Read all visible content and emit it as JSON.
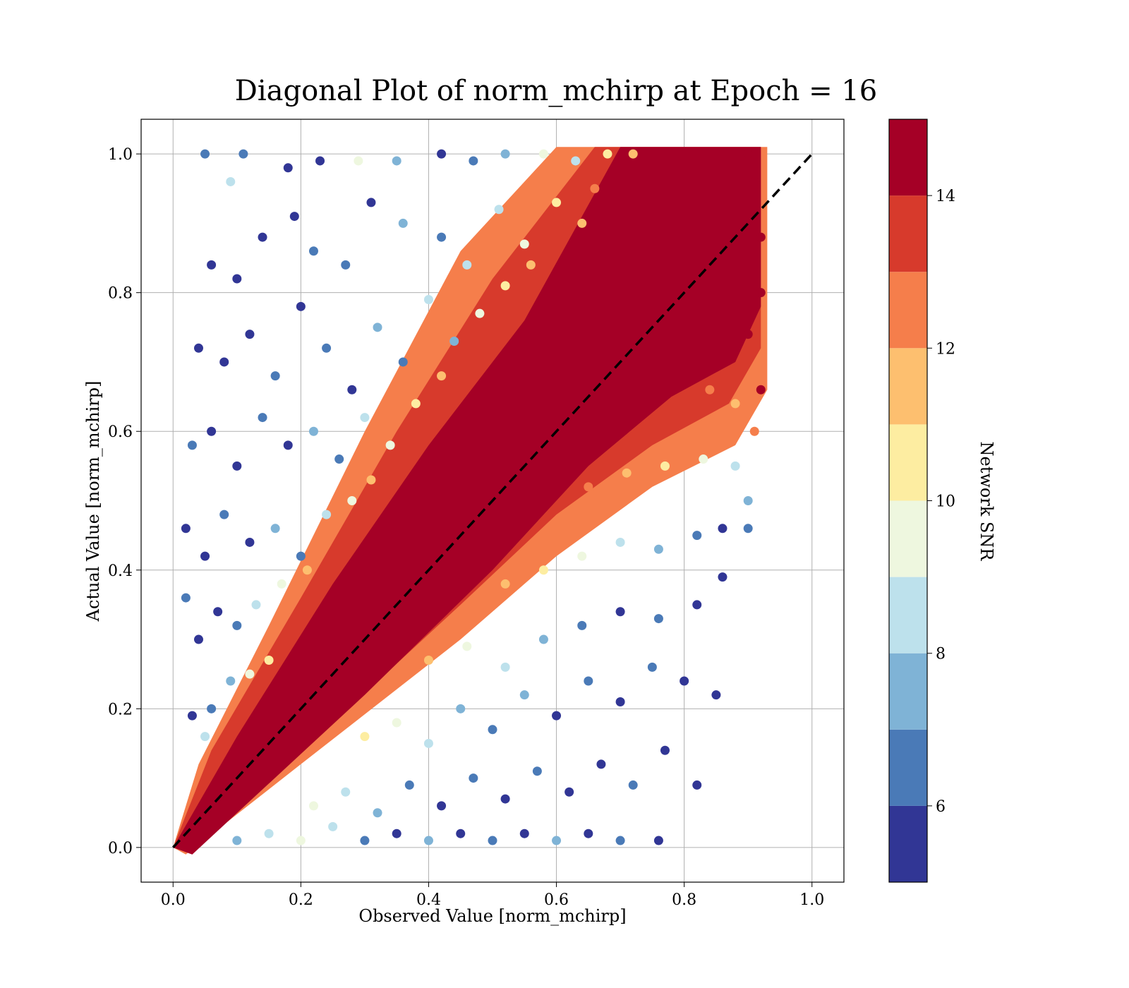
{
  "chart_data": {
    "type": "scatter",
    "title": "Diagonal Plot of norm_mchirp at Epoch = 16",
    "xlabel": "Observed Value [norm_mchirp]",
    "ylabel": "Actual Value [norm_mchirp]",
    "xlim": [
      -0.05,
      1.05
    ],
    "ylim": [
      -0.05,
      1.05
    ],
    "xticks": [
      "0.0",
      "0.2",
      "0.4",
      "0.6",
      "0.8",
      "1.0"
    ],
    "yticks": [
      "0.0",
      "0.2",
      "0.4",
      "0.6",
      "0.8",
      "1.0"
    ],
    "grid": true,
    "reference_line": {
      "from": [
        0,
        0
      ],
      "to": [
        1,
        1
      ],
      "style": "dashed",
      "color": "#000000"
    },
    "colorbar": {
      "label": "Network SNR",
      "range": [
        5,
        15
      ],
      "ticks": [
        "6",
        "8",
        "10",
        "12",
        "14"
      ],
      "bins": [
        {
          "from": 5,
          "to": 6,
          "color": "#313695"
        },
        {
          "from": 6,
          "to": 7,
          "color": "#4a7ab7"
        },
        {
          "from": 7,
          "to": 8,
          "color": "#7fb3d6"
        },
        {
          "from": 8,
          "to": 9,
          "color": "#bde1ec"
        },
        {
          "from": 9,
          "to": 10,
          "color": "#eef7df"
        },
        {
          "from": 10,
          "to": 11,
          "color": "#fdeda1"
        },
        {
          "from": 11,
          "to": 12,
          "color": "#fdbf6f"
        },
        {
          "from": 12,
          "to": 13,
          "color": "#f57e4b"
        },
        {
          "from": 13,
          "to": 14,
          "color": "#d73a2c"
        },
        {
          "from": 14,
          "to": 15,
          "color": "#a50026"
        }
      ]
    },
    "series": [
      {
        "color_by": "Network SNR",
        "points": [
          [
            0.05,
            1.0,
            6
          ],
          [
            0.09,
            0.96,
            8
          ],
          [
            0.11,
            1.0,
            6
          ],
          [
            0.18,
            0.98,
            5
          ],
          [
            0.23,
            0.99,
            5
          ],
          [
            0.29,
            0.99,
            9
          ],
          [
            0.35,
            0.99,
            7
          ],
          [
            0.42,
            1.0,
            5
          ],
          [
            0.47,
            0.99,
            6
          ],
          [
            0.52,
            1.0,
            7
          ],
          [
            0.58,
            1.0,
            9
          ],
          [
            0.63,
            0.99,
            8
          ],
          [
            0.68,
            1.0,
            10
          ],
          [
            0.72,
            1.0,
            11
          ],
          [
            0.06,
            0.84,
            5
          ],
          [
            0.1,
            0.82,
            5
          ],
          [
            0.14,
            0.88,
            5
          ],
          [
            0.19,
            0.91,
            5
          ],
          [
            0.22,
            0.86,
            6
          ],
          [
            0.27,
            0.84,
            6
          ],
          [
            0.31,
            0.93,
            5
          ],
          [
            0.36,
            0.9,
            7
          ],
          [
            0.42,
            0.88,
            6
          ],
          [
            0.46,
            0.84,
            8
          ],
          [
            0.51,
            0.92,
            8
          ],
          [
            0.55,
            0.87,
            9
          ],
          [
            0.6,
            0.93,
            10
          ],
          [
            0.64,
            0.9,
            11
          ],
          [
            0.66,
            0.95,
            12
          ],
          [
            0.04,
            0.72,
            5
          ],
          [
            0.08,
            0.7,
            5
          ],
          [
            0.12,
            0.74,
            5
          ],
          [
            0.16,
            0.68,
            6
          ],
          [
            0.2,
            0.78,
            5
          ],
          [
            0.24,
            0.72,
            6
          ],
          [
            0.28,
            0.66,
            5
          ],
          [
            0.32,
            0.75,
            7
          ],
          [
            0.36,
            0.7,
            6
          ],
          [
            0.4,
            0.79,
            8
          ],
          [
            0.44,
            0.73,
            7
          ],
          [
            0.48,
            0.77,
            9
          ],
          [
            0.52,
            0.81,
            10
          ],
          [
            0.56,
            0.84,
            11
          ],
          [
            0.03,
            0.58,
            6
          ],
          [
            0.06,
            0.6,
            5
          ],
          [
            0.1,
            0.55,
            5
          ],
          [
            0.14,
            0.62,
            6
          ],
          [
            0.18,
            0.58,
            5
          ],
          [
            0.22,
            0.6,
            7
          ],
          [
            0.26,
            0.56,
            6
          ],
          [
            0.3,
            0.62,
            8
          ],
          [
            0.34,
            0.58,
            9
          ],
          [
            0.38,
            0.64,
            10
          ],
          [
            0.42,
            0.68,
            11
          ],
          [
            0.02,
            0.46,
            5
          ],
          [
            0.05,
            0.42,
            5
          ],
          [
            0.08,
            0.48,
            6
          ],
          [
            0.12,
            0.44,
            5
          ],
          [
            0.16,
            0.46,
            7
          ],
          [
            0.2,
            0.42,
            6
          ],
          [
            0.24,
            0.48,
            8
          ],
          [
            0.28,
            0.5,
            9
          ],
          [
            0.31,
            0.53,
            11
          ],
          [
            0.02,
            0.36,
            6
          ],
          [
            0.04,
            0.3,
            5
          ],
          [
            0.07,
            0.34,
            5
          ],
          [
            0.1,
            0.32,
            6
          ],
          [
            0.13,
            0.35,
            8
          ],
          [
            0.17,
            0.38,
            9
          ],
          [
            0.21,
            0.4,
            11
          ],
          [
            0.03,
            0.19,
            5
          ],
          [
            0.06,
            0.2,
            6
          ],
          [
            0.09,
            0.24,
            7
          ],
          [
            0.12,
            0.25,
            9
          ],
          [
            0.15,
            0.27,
            10
          ],
          [
            0.05,
            0.16,
            8
          ],
          [
            0.1,
            0.01,
            7
          ],
          [
            0.15,
            0.02,
            8
          ],
          [
            0.2,
            0.01,
            9
          ],
          [
            0.25,
            0.03,
            8
          ],
          [
            0.3,
            0.01,
            6
          ],
          [
            0.35,
            0.02,
            5
          ],
          [
            0.4,
            0.01,
            7
          ],
          [
            0.45,
            0.02,
            5
          ],
          [
            0.5,
            0.01,
            6
          ],
          [
            0.55,
            0.02,
            5
          ],
          [
            0.6,
            0.01,
            7
          ],
          [
            0.65,
            0.02,
            5
          ],
          [
            0.7,
            0.01,
            6
          ],
          [
            0.76,
            0.01,
            5
          ],
          [
            0.22,
            0.06,
            9
          ],
          [
            0.27,
            0.08,
            8
          ],
          [
            0.32,
            0.05,
            7
          ],
          [
            0.37,
            0.09,
            6
          ],
          [
            0.42,
            0.06,
            5
          ],
          [
            0.47,
            0.1,
            6
          ],
          [
            0.52,
            0.07,
            5
          ],
          [
            0.57,
            0.11,
            6
          ],
          [
            0.62,
            0.08,
            5
          ],
          [
            0.67,
            0.12,
            5
          ],
          [
            0.72,
            0.09,
            6
          ],
          [
            0.77,
            0.14,
            5
          ],
          [
            0.82,
            0.09,
            5
          ],
          [
            0.3,
            0.16,
            10
          ],
          [
            0.35,
            0.18,
            9
          ],
          [
            0.4,
            0.15,
            8
          ],
          [
            0.45,
            0.2,
            7
          ],
          [
            0.5,
            0.17,
            6
          ],
          [
            0.55,
            0.22,
            7
          ],
          [
            0.6,
            0.19,
            5
          ],
          [
            0.65,
            0.24,
            6
          ],
          [
            0.7,
            0.21,
            5
          ],
          [
            0.75,
            0.26,
            6
          ],
          [
            0.8,
            0.24,
            5
          ],
          [
            0.85,
            0.22,
            5
          ],
          [
            0.4,
            0.27,
            11
          ],
          [
            0.46,
            0.29,
            9
          ],
          [
            0.52,
            0.26,
            8
          ],
          [
            0.58,
            0.3,
            7
          ],
          [
            0.64,
            0.32,
            6
          ],
          [
            0.7,
            0.34,
            5
          ],
          [
            0.76,
            0.33,
            6
          ],
          [
            0.82,
            0.35,
            5
          ],
          [
            0.86,
            0.39,
            5
          ],
          [
            0.52,
            0.38,
            11
          ],
          [
            0.58,
            0.4,
            10
          ],
          [
            0.64,
            0.42,
            9
          ],
          [
            0.7,
            0.44,
            8
          ],
          [
            0.76,
            0.43,
            7
          ],
          [
            0.82,
            0.45,
            6
          ],
          [
            0.86,
            0.46,
            5
          ],
          [
            0.9,
            0.46,
            6
          ],
          [
            0.65,
            0.52,
            12
          ],
          [
            0.71,
            0.54,
            11
          ],
          [
            0.77,
            0.55,
            10
          ],
          [
            0.83,
            0.56,
            9
          ],
          [
            0.88,
            0.55,
            8
          ],
          [
            0.9,
            0.5,
            7
          ],
          [
            0.78,
            0.64,
            13
          ],
          [
            0.84,
            0.66,
            12
          ],
          [
            0.88,
            0.64,
            11
          ],
          [
            0.91,
            0.6,
            12
          ],
          [
            0.92,
            0.66,
            14
          ],
          [
            0.9,
            0.74,
            14
          ],
          [
            0.92,
            0.8,
            14
          ],
          [
            0.92,
            0.88,
            14
          ],
          [
            0.91,
            0.96,
            14
          ],
          [
            0.9,
            1.0,
            14
          ]
        ]
      }
    ]
  }
}
